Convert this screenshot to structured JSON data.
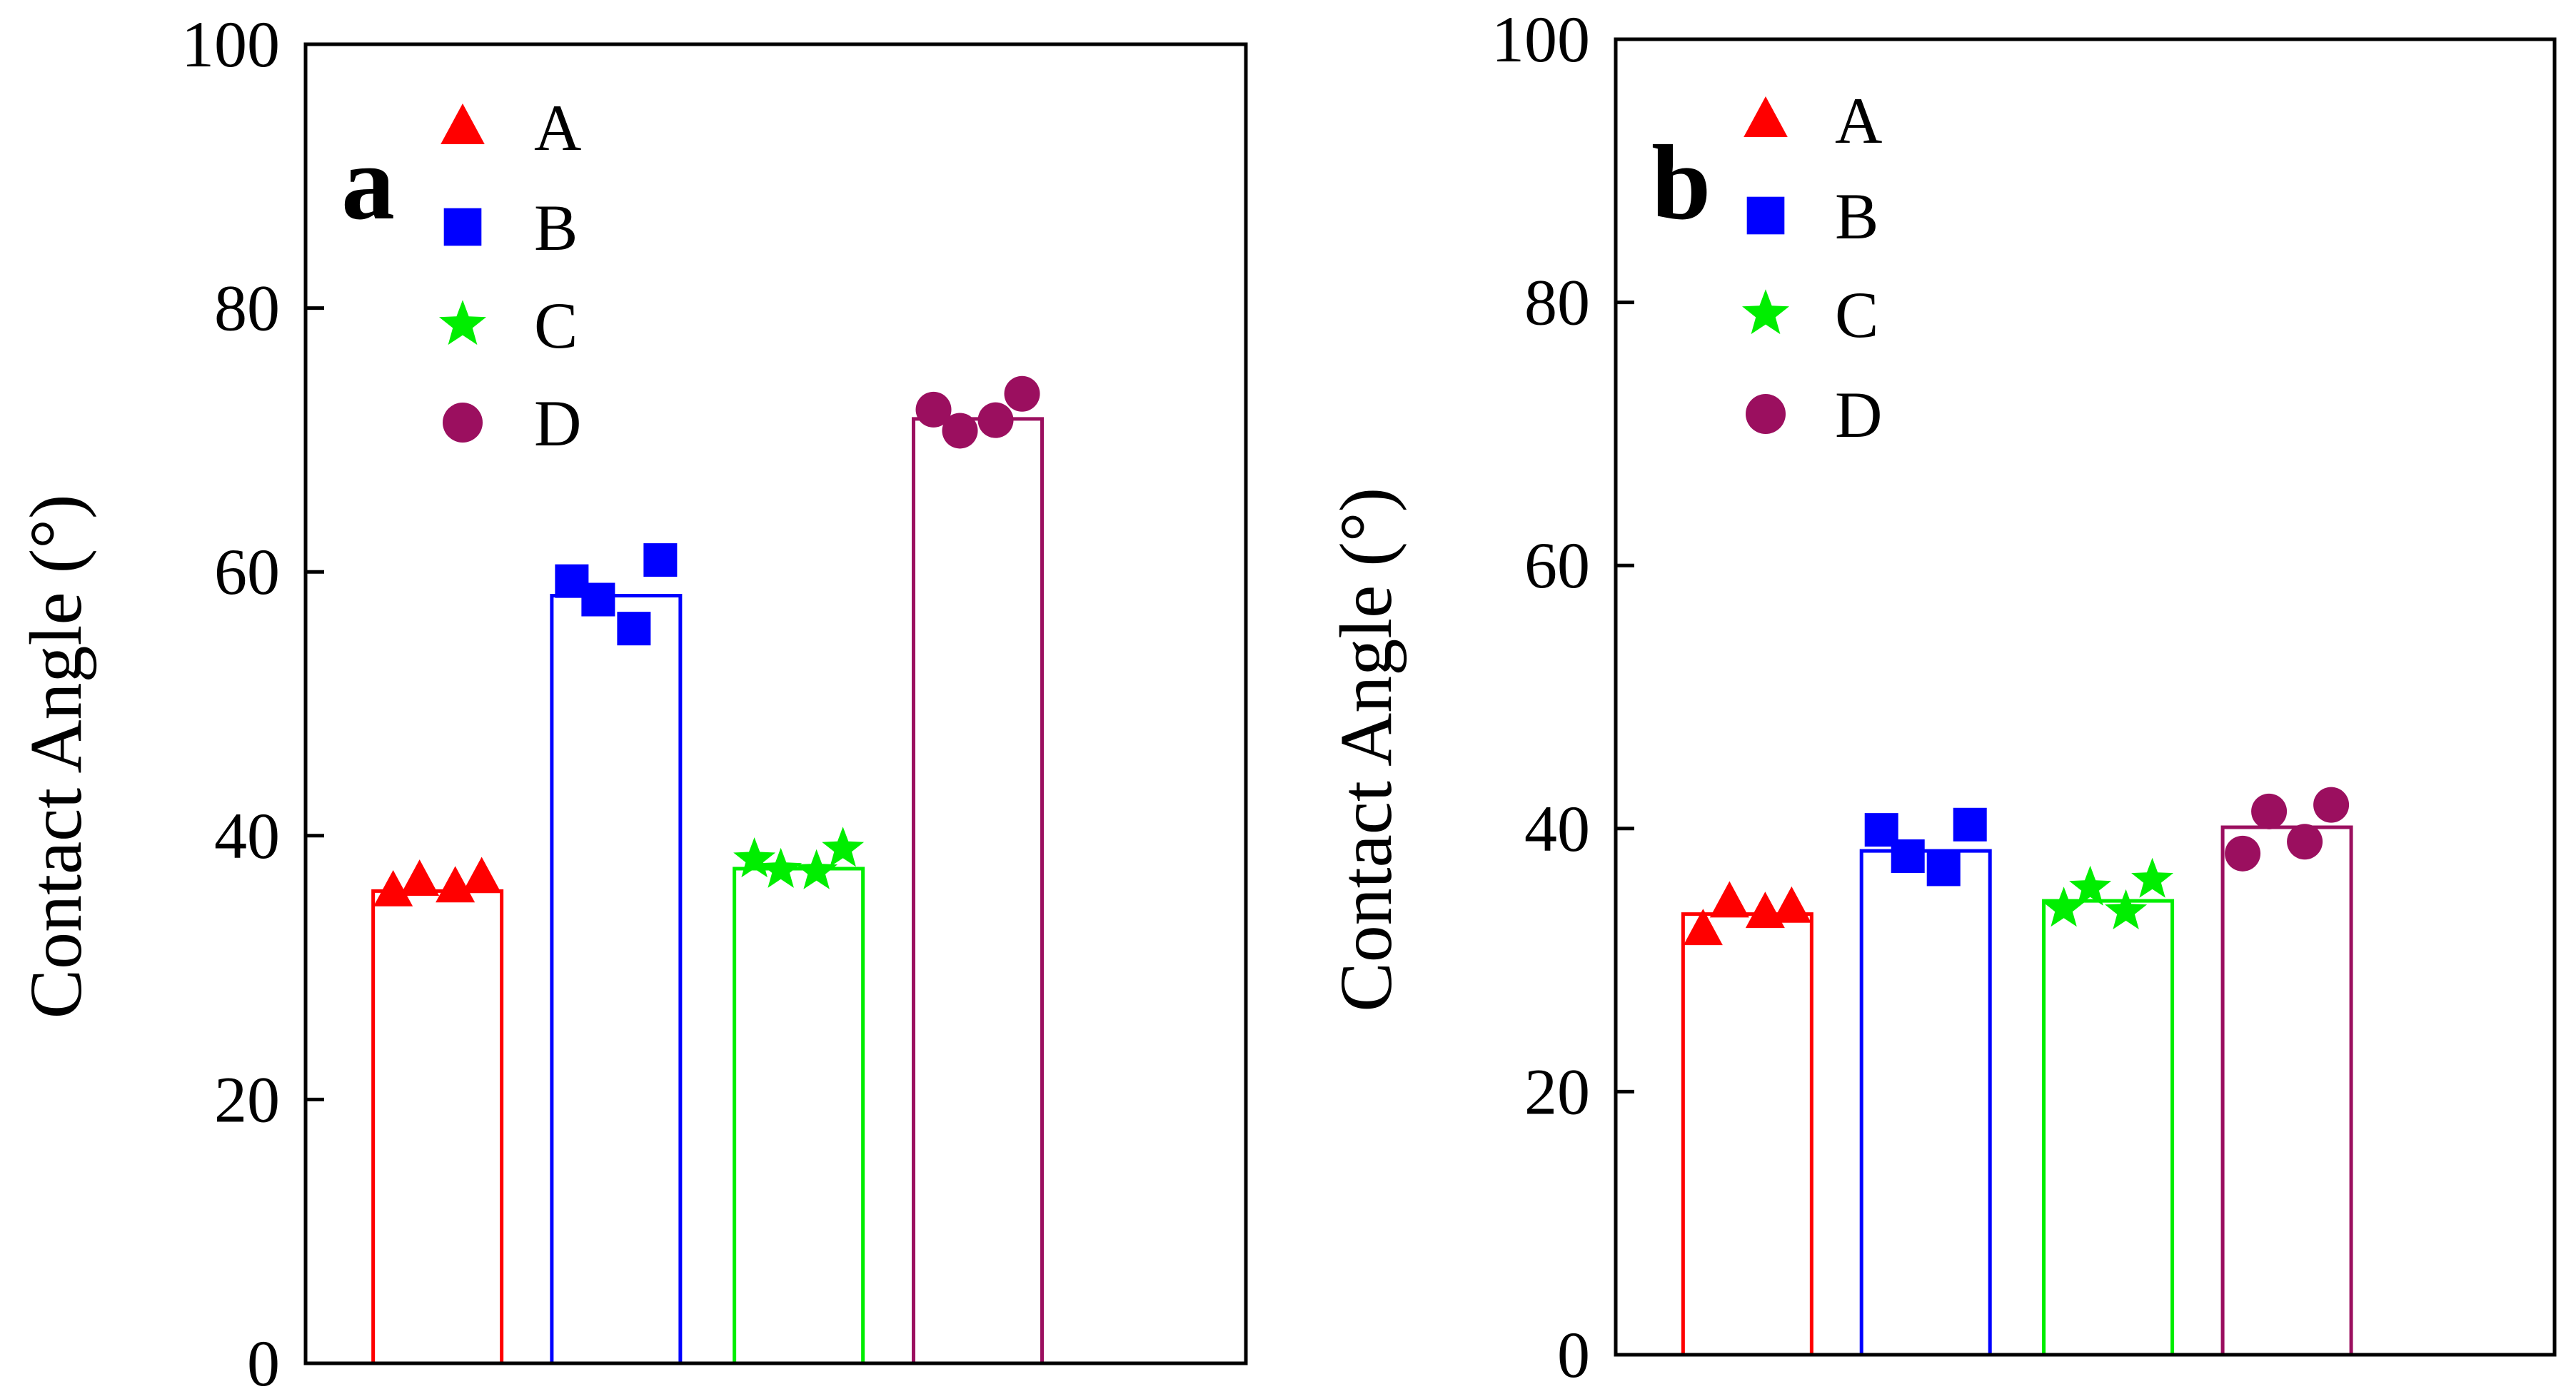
{
  "chart_data": [
    {
      "type": "bar",
      "panel_label": "a",
      "ylabel": "Contact Angle (°)",
      "xlabel": "",
      "ylim": [
        0,
        100
      ],
      "yticks": [
        "0",
        "20",
        "40",
        "60",
        "80",
        "100"
      ],
      "grid": false,
      "legend_position": "top-left",
      "series": [
        {
          "name": "A",
          "color": "#ff0000",
          "marker": "triangle",
          "value": 35.8,
          "points": [
            35.8,
            36.6,
            36.1,
            36.8
          ]
        },
        {
          "name": "B",
          "color": "#0000ff",
          "marker": "square",
          "value": 58.2,
          "points": [
            59.3,
            57.9,
            55.7,
            60.9
          ]
        },
        {
          "name": "C",
          "color": "#00ee00",
          "marker": "star",
          "value": 37.5,
          "points": [
            38.2,
            37.4,
            37.3,
            39.0
          ]
        },
        {
          "name": "D",
          "color": "#9b0f5f",
          "marker": "circle",
          "value": 71.6,
          "points": [
            72.3,
            70.7,
            71.5,
            73.5
          ]
        }
      ]
    },
    {
      "type": "bar",
      "panel_label": "b",
      "ylabel": "Contact Angle (°)",
      "xlabel": "",
      "ylim": [
        0,
        100
      ],
      "yticks": [
        "0",
        "20",
        "40",
        "60",
        "80",
        "100"
      ],
      "grid": false,
      "legend_position": "top-left",
      "series": [
        {
          "name": "A",
          "color": "#ff0000",
          "marker": "triangle",
          "value": 33.5,
          "points": [
            32.3,
            34.4,
            33.6,
            34.0
          ]
        },
        {
          "name": "B",
          "color": "#0000ff",
          "marker": "square",
          "value": 38.3,
          "points": [
            39.9,
            37.9,
            36.9,
            40.3
          ]
        },
        {
          "name": "C",
          "color": "#00ee00",
          "marker": "star",
          "value": 34.5,
          "points": [
            33.9,
            35.5,
            33.7,
            36.1
          ]
        },
        {
          "name": "D",
          "color": "#9b0f5f",
          "marker": "circle",
          "value": 40.1,
          "points": [
            38.1,
            41.3,
            39.0,
            41.8
          ]
        }
      ]
    }
  ]
}
